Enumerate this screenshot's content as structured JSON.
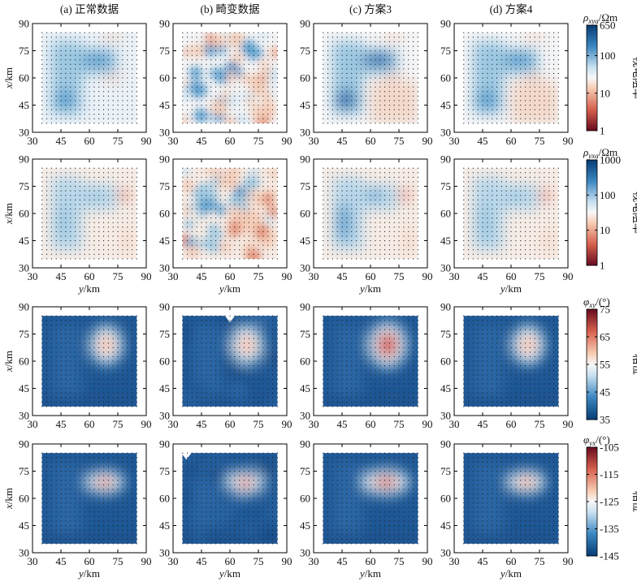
{
  "figure": {
    "column_titles": [
      "(a) 正常数据",
      "(b) 畸变数据",
      "(c) 方案3",
      "(d) 方案4"
    ]
  },
  "chart_data": {
    "type": "heatmap",
    "rows": [
      {
        "quantity": "rho_xya",
        "colorbar": {
          "label_symbol": "ρ",
          "label_sub": "xya",
          "label_unit": "/Ωm",
          "side_label": "视电阻率",
          "ticks": [
            "650",
            "100",
            "10",
            "1"
          ],
          "scale": "log",
          "range": [
            1,
            650
          ],
          "cmap": "RdBu"
        },
        "panels": [
          {
            "id": "a",
            "desc": "L-shaped conductor, normal"
          },
          {
            "id": "b",
            "desc": "distorted, noisy"
          },
          {
            "id": "c",
            "desc": "scheme 3 corrected"
          },
          {
            "id": "d",
            "desc": "scheme 4 corrected"
          }
        ]
      },
      {
        "quantity": "rho_yxa",
        "colorbar": {
          "label_symbol": "ρ",
          "label_sub": "yxa",
          "label_unit": "/Ωm",
          "side_label": "视电阻率",
          "ticks": [
            "1000",
            "100",
            "10",
            "1"
          ],
          "scale": "log",
          "range": [
            1,
            1000
          ],
          "cmap": "RdBu"
        }
      },
      {
        "quantity": "phi_xy",
        "colorbar": {
          "label_symbol": "φ",
          "label_sub": "xy",
          "label_unit": "/(°)",
          "side_label": "相位",
          "ticks": [
            "75",
            "65",
            "55",
            "45",
            "35"
          ],
          "scale": "linear",
          "range": [
            35,
            75
          ],
          "cmap": "RdBu_r"
        }
      },
      {
        "quantity": "phi_yx",
        "colorbar": {
          "label_symbol": "φ",
          "label_sub": "yx",
          "label_unit": "/(°)",
          "side_label": "相位",
          "ticks": [
            "-105",
            "-115",
            "-125",
            "-135",
            "-145"
          ],
          "scale": "linear",
          "range": [
            -145,
            -105
          ],
          "cmap": "RdBu_r"
        }
      }
    ],
    "x_axis": {
      "label_italic": "y",
      "label_unit": "/km",
      "ticks": [
        "30",
        "45",
        "60",
        "75",
        "90"
      ],
      "range": [
        30,
        90
      ]
    },
    "y_axis": {
      "label_italic": "x",
      "label_unit": "/km",
      "ticks": [
        "30",
        "45",
        "60",
        "75",
        "90"
      ],
      "range": [
        30,
        90
      ]
    },
    "stations": {
      "x_range": [
        35,
        85
      ],
      "y_range": [
        35,
        85
      ],
      "spacing_km": 2.5
    }
  }
}
